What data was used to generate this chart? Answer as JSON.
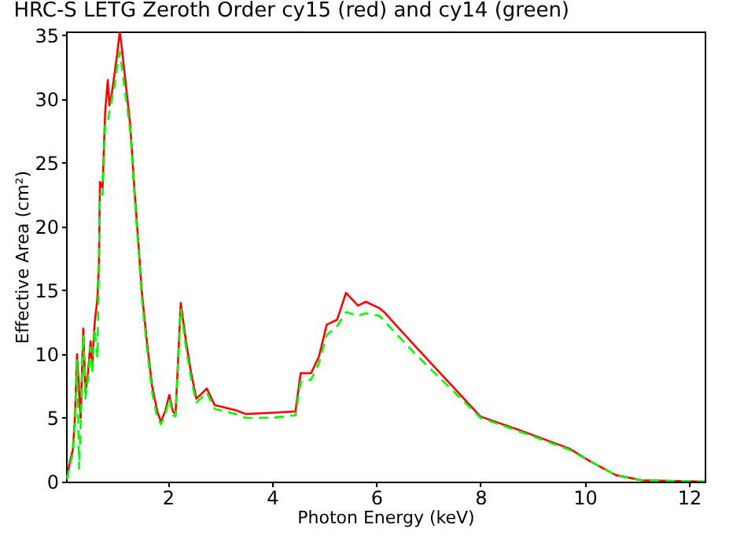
{
  "chart_data": {
    "type": "line",
    "title": "HRC-S LETG Zeroth Order cy15 (red) and cy14 (green)",
    "xlabel": "Photon Energy (keV)",
    "ylabel": "Effective Area (cm²)",
    "xlim": [
      0.05,
      12.3
    ],
    "ylim": [
      0,
      35.3
    ],
    "xticks": [
      2,
      4,
      6,
      8,
      10,
      12
    ],
    "yticks": [
      0,
      5,
      10,
      15,
      20,
      25,
      30,
      35
    ],
    "grid": false,
    "series": [
      {
        "color": "#00ff00",
        "line_style": "dashed",
        "x": [
          0.07,
          0.12,
          0.18,
          0.22,
          0.26,
          0.3,
          0.33,
          0.38,
          0.42,
          0.47,
          0.52,
          0.55,
          0.6,
          0.65,
          0.68,
          0.7,
          0.75,
          0.8,
          0.85,
          0.88,
          0.93,
          0.98,
          1.03,
          1.08,
          1.12,
          1.2,
          1.28,
          1.36,
          1.45,
          1.5,
          1.6,
          1.7,
          1.8,
          1.87,
          1.95,
          2.03,
          2.1,
          2.15,
          2.25,
          2.35,
          2.45,
          2.55,
          2.75,
          2.9,
          3.3,
          3.5,
          4.0,
          4.45,
          4.55,
          4.75,
          4.9,
          5.05,
          5.25,
          5.42,
          5.65,
          5.8,
          6.06,
          6.15,
          6.75,
          7.5,
          8.0,
          8.7,
          9.3,
          9.7,
          10.1,
          10.6,
          11.1,
          12.3
        ],
        "values": [
          0.2,
          1.2,
          2.2,
          4.5,
          9.5,
          1.0,
          4.5,
          11.5,
          6.5,
          8.0,
          10.5,
          8.5,
          12.0,
          9.7,
          16.5,
          22.5,
          22.5,
          28.0,
          28.2,
          29.0,
          30.0,
          31.0,
          32.5,
          33.7,
          32.5,
          30.0,
          27.5,
          22.5,
          17.5,
          14.5,
          10.5,
          7.0,
          5.0,
          4.5,
          5.2,
          6.5,
          5.2,
          5.1,
          13.5,
          10.5,
          8.0,
          6.2,
          7.0,
          5.7,
          5.3,
          5.0,
          5.0,
          5.2,
          7.8,
          8.0,
          9.3,
          11.5,
          12.2,
          13.3,
          13.0,
          13.2,
          13.0,
          12.6,
          10.0,
          7.0,
          5.0,
          4.0,
          3.1,
          2.5,
          1.6,
          0.5,
          0.1,
          0
        ]
      },
      {
        "color": "#ff0000",
        "line_style": "solid",
        "x": [
          0.07,
          0.12,
          0.18,
          0.22,
          0.26,
          0.3,
          0.33,
          0.38,
          0.42,
          0.47,
          0.52,
          0.55,
          0.6,
          0.65,
          0.68,
          0.7,
          0.75,
          0.8,
          0.85,
          0.88,
          0.93,
          0.98,
          1.03,
          1.08,
          1.12,
          1.2,
          1.28,
          1.36,
          1.45,
          1.5,
          1.6,
          1.7,
          1.8,
          1.87,
          1.95,
          2.03,
          2.1,
          2.15,
          2.25,
          2.35,
          2.45,
          2.55,
          2.75,
          2.9,
          3.3,
          3.5,
          4.0,
          4.45,
          4.55,
          4.75,
          4.9,
          5.05,
          5.25,
          5.42,
          5.65,
          5.8,
          6.06,
          6.15,
          6.75,
          7.5,
          8.0,
          8.7,
          9.3,
          9.7,
          10.1,
          10.6,
          11.1,
          12.3
        ],
        "values": [
          0.3,
          1.5,
          2.5,
          5.0,
          10.0,
          7.0,
          5.0,
          12.0,
          7.0,
          8.5,
          11.0,
          9.0,
          12.5,
          14.3,
          17.0,
          23.5,
          23.0,
          29.0,
          31.5,
          29.5,
          30.5,
          32.0,
          33.5,
          35.3,
          34.0,
          31.0,
          28.0,
          23.0,
          18.0,
          15.0,
          11.0,
          7.5,
          5.5,
          4.7,
          5.5,
          6.8,
          5.5,
          5.3,
          14.0,
          11.0,
          8.5,
          6.5,
          7.3,
          6.0,
          5.6,
          5.3,
          5.4,
          5.5,
          8.5,
          8.5,
          9.8,
          12.3,
          12.7,
          14.8,
          13.8,
          14.1,
          13.6,
          13.3,
          10.6,
          7.3,
          5.1,
          4.1,
          3.2,
          2.6,
          1.6,
          0.5,
          0.1,
          0
        ]
      }
    ]
  }
}
